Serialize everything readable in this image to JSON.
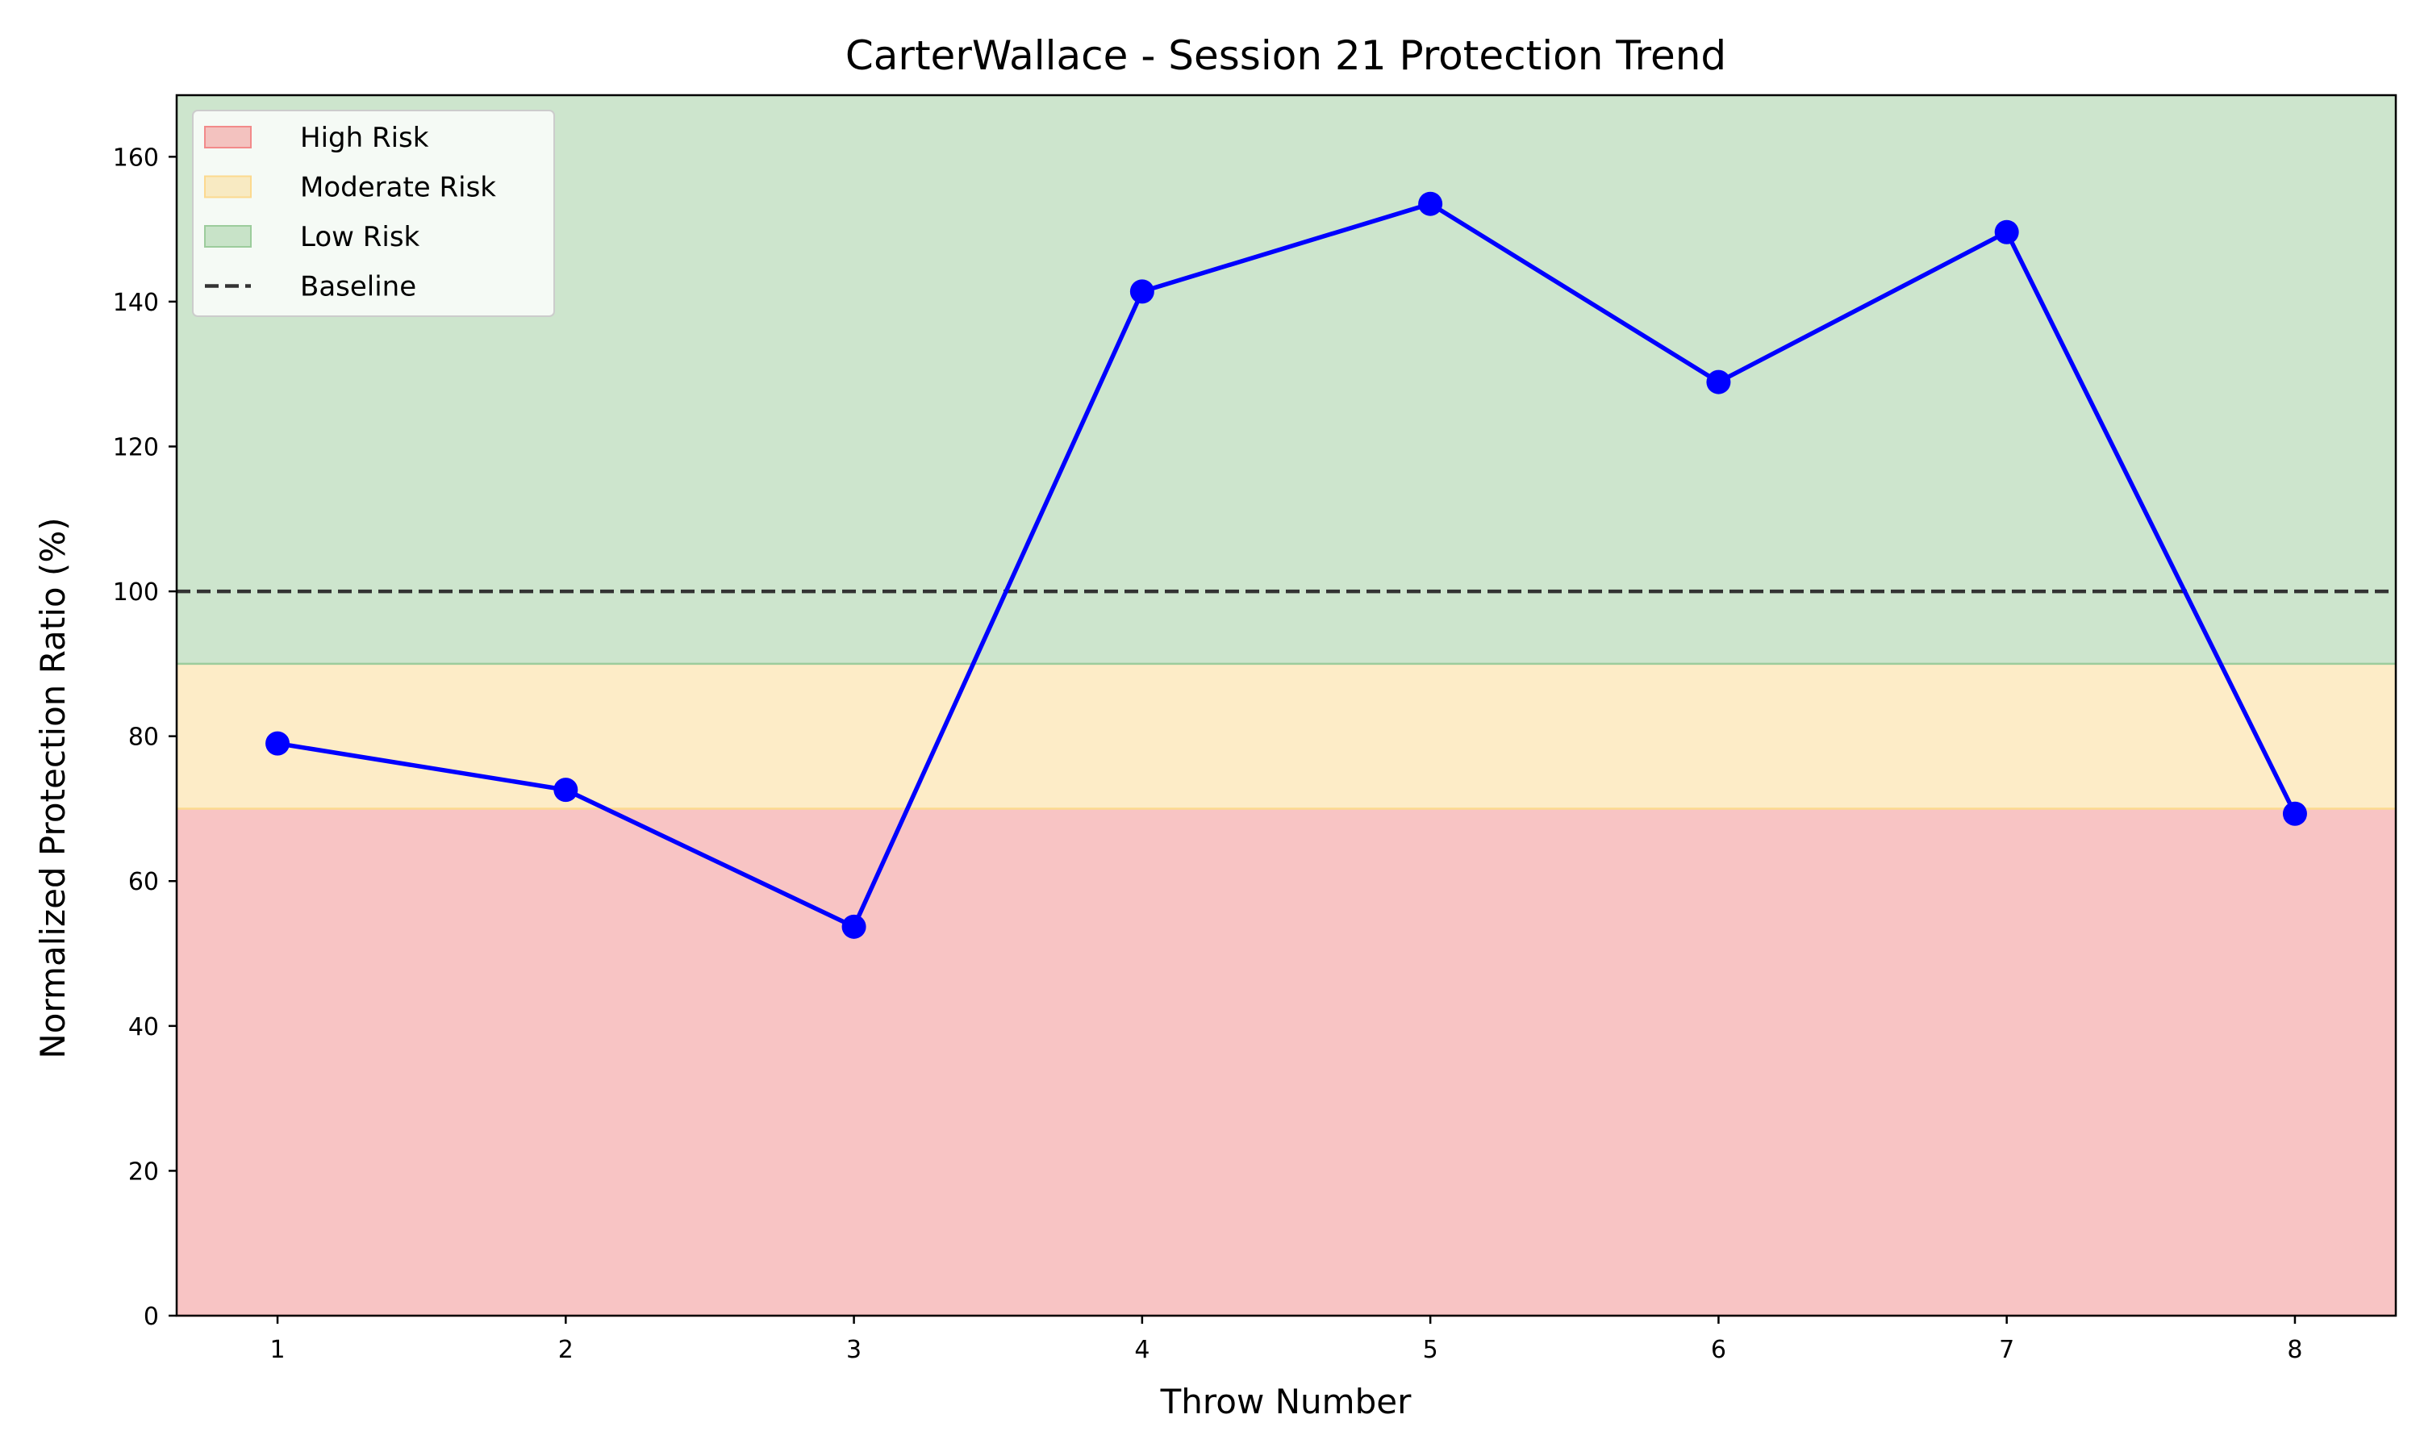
{
  "chart_data": {
    "type": "line",
    "title": "CarterWallace - Session 21 Protection Trend",
    "xlabel": "Throw Number",
    "ylabel": "Normalized Protection Ratio (%)",
    "x": [
      1,
      2,
      3,
      4,
      5,
      6,
      7,
      8
    ],
    "xlim": [
      0.65,
      8.35
    ],
    "ylim": [
      0,
      168.5
    ],
    "x_ticks": [
      1,
      2,
      3,
      4,
      5,
      6,
      7,
      8
    ],
    "y_ticks": [
      0,
      20,
      40,
      60,
      80,
      100,
      120,
      140,
      160
    ],
    "series": [
      {
        "values": [
          79.0,
          72.6,
          53.7,
          141.4,
          153.5,
          128.9,
          149.6,
          69.3
        ],
        "color": "#0000ff",
        "marker": "circle"
      }
    ],
    "bands": [
      {
        "name": "High Risk",
        "from": 0,
        "to": 70,
        "color": "#f28a8a"
      },
      {
        "name": "Moderate Risk",
        "from": 70,
        "to": 90,
        "color": "#fcd98f"
      },
      {
        "name": "Low Risk",
        "from": 90,
        "to": 168.5,
        "color": "#9ccc9c"
      }
    ],
    "baseline": {
      "name": "Baseline",
      "value": 100,
      "color": "#333333",
      "style": "dashed"
    },
    "legend": {
      "position": "top-left",
      "entries": [
        "High Risk",
        "Moderate Risk",
        "Low Risk",
        "Baseline"
      ]
    },
    "grid": false
  }
}
